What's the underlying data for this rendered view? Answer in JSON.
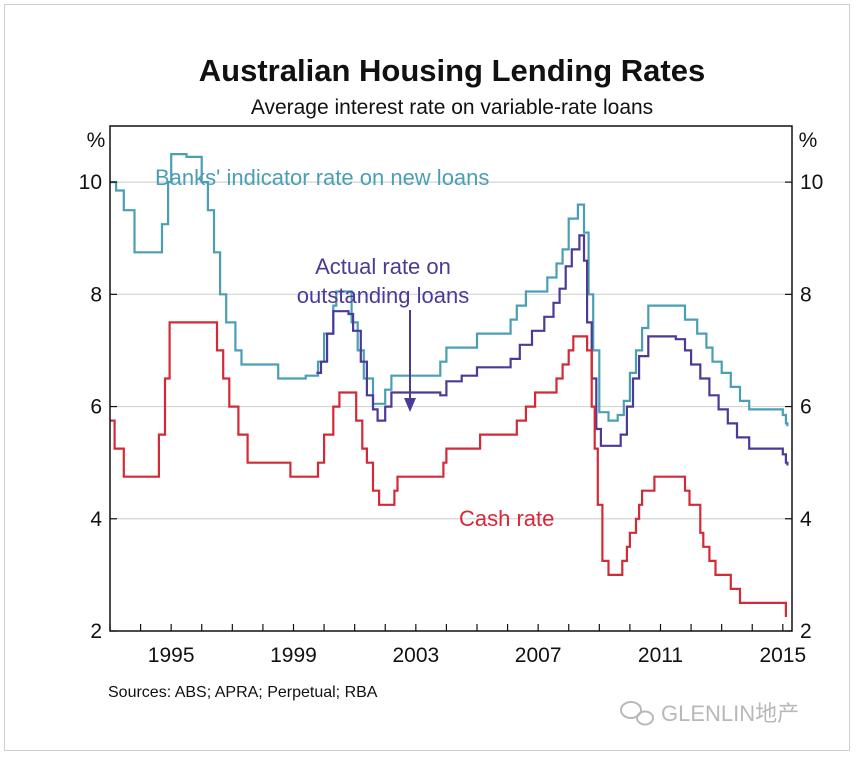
{
  "chart_data": {
    "type": "line",
    "title": "Australian Housing Lending Rates",
    "subtitle": "Average interest rate on variable-rate loans",
    "y_unit_left": "%",
    "y_unit_right": "%",
    "ylim": [
      2,
      11
    ],
    "xlim": [
      1993.0,
      2015.3
    ],
    "yticks": [
      "2",
      "4",
      "6",
      "8",
      "10"
    ],
    "xticks": [
      "1995",
      "1999",
      "2003",
      "2007",
      "2011",
      "2015"
    ],
    "grid": true,
    "source": "Sources:  ABS; APRA; Perpetual; RBA",
    "annotations": {
      "banks": "Banks' indicator rate on new loans",
      "actual_line1": "Actual rate on",
      "actual_line2": "outstanding loans",
      "cash": "Cash rate"
    },
    "watermark": "GLENLIN地产",
    "colors": {
      "banks": "#4a9fb5",
      "actual": "#4b3a96",
      "cash": "#d42a35"
    },
    "series": [
      {
        "name": "Banks' indicator rate on new loans",
        "step": true,
        "color": "#4a9fb5",
        "points": [
          [
            1993.0,
            10.0
          ],
          [
            1993.2,
            9.85
          ],
          [
            1993.45,
            9.5
          ],
          [
            1993.8,
            8.75
          ],
          [
            1994.7,
            9.25
          ],
          [
            1994.9,
            10.0
          ],
          [
            1995.0,
            10.5
          ],
          [
            1995.5,
            10.45
          ],
          [
            1996.0,
            10.0
          ],
          [
            1996.2,
            9.5
          ],
          [
            1996.4,
            8.75
          ],
          [
            1996.6,
            8.0
          ],
          [
            1996.8,
            7.5
          ],
          [
            1997.1,
            7.0
          ],
          [
            1997.3,
            6.75
          ],
          [
            1998.5,
            6.5
          ],
          [
            1999.4,
            6.55
          ],
          [
            1999.8,
            6.8
          ],
          [
            2000.0,
            7.3
          ],
          [
            2000.3,
            7.8
          ],
          [
            2000.4,
            8.05
          ],
          [
            2000.9,
            7.5
          ],
          [
            2001.1,
            7.0
          ],
          [
            2001.3,
            6.5
          ],
          [
            2001.6,
            6.05
          ],
          [
            2002.0,
            6.3
          ],
          [
            2002.2,
            6.55
          ],
          [
            2003.8,
            6.8
          ],
          [
            2004.0,
            7.05
          ],
          [
            2004.6,
            7.05
          ],
          [
            2005.0,
            7.3
          ],
          [
            2006.1,
            7.55
          ],
          [
            2006.3,
            7.8
          ],
          [
            2006.6,
            8.05
          ],
          [
            2006.9,
            8.05
          ],
          [
            2007.3,
            8.3
          ],
          [
            2007.6,
            8.55
          ],
          [
            2007.8,
            8.8
          ],
          [
            2008.0,
            9.35
          ],
          [
            2008.3,
            9.6
          ],
          [
            2008.5,
            9.1
          ],
          [
            2008.65,
            8.0
          ],
          [
            2008.8,
            7.0
          ],
          [
            2009.0,
            5.9
          ],
          [
            2009.3,
            5.75
          ],
          [
            2009.6,
            5.85
          ],
          [
            2009.8,
            6.1
          ],
          [
            2010.0,
            6.6
          ],
          [
            2010.2,
            7.0
          ],
          [
            2010.4,
            7.4
          ],
          [
            2010.6,
            7.8
          ],
          [
            2011.5,
            7.8
          ],
          [
            2011.8,
            7.55
          ],
          [
            2012.2,
            7.3
          ],
          [
            2012.5,
            7.05
          ],
          [
            2012.7,
            6.8
          ],
          [
            2013.0,
            6.6
          ],
          [
            2013.3,
            6.35
          ],
          [
            2013.6,
            6.1
          ],
          [
            2013.9,
            5.95
          ],
          [
            2015.0,
            5.85
          ],
          [
            2015.1,
            5.7
          ],
          [
            2015.15,
            5.65
          ]
        ]
      },
      {
        "name": "Actual rate on outstanding loans",
        "step": true,
        "color": "#4b3a96",
        "points": [
          [
            1999.75,
            6.6
          ],
          [
            1999.9,
            6.8
          ],
          [
            2000.1,
            7.3
          ],
          [
            2000.3,
            7.7
          ],
          [
            2000.8,
            7.65
          ],
          [
            2000.95,
            7.35
          ],
          [
            2001.2,
            6.8
          ],
          [
            2001.4,
            6.2
          ],
          [
            2001.6,
            5.95
          ],
          [
            2001.75,
            5.75
          ],
          [
            2002.0,
            6.0
          ],
          [
            2002.2,
            6.25
          ],
          [
            2003.8,
            6.2
          ],
          [
            2004.0,
            6.45
          ],
          [
            2004.5,
            6.55
          ],
          [
            2005.0,
            6.7
          ],
          [
            2006.1,
            6.85
          ],
          [
            2006.4,
            7.1
          ],
          [
            2006.8,
            7.35
          ],
          [
            2007.2,
            7.6
          ],
          [
            2007.5,
            7.85
          ],
          [
            2007.7,
            8.1
          ],
          [
            2007.9,
            8.5
          ],
          [
            2008.1,
            8.8
          ],
          [
            2008.35,
            9.05
          ],
          [
            2008.5,
            8.6
          ],
          [
            2008.6,
            7.5
          ],
          [
            2008.75,
            6.5
          ],
          [
            2008.9,
            5.6
          ],
          [
            2009.05,
            5.3
          ],
          [
            2009.5,
            5.3
          ],
          [
            2009.7,
            5.5
          ],
          [
            2009.9,
            6.0
          ],
          [
            2010.1,
            6.5
          ],
          [
            2010.3,
            6.9
          ],
          [
            2010.6,
            7.25
          ],
          [
            2011.5,
            7.2
          ],
          [
            2011.8,
            7.0
          ],
          [
            2012.0,
            6.75
          ],
          [
            2012.3,
            6.5
          ],
          [
            2012.6,
            6.2
          ],
          [
            2012.9,
            5.95
          ],
          [
            2013.2,
            5.7
          ],
          [
            2013.5,
            5.45
          ],
          [
            2013.9,
            5.25
          ],
          [
            2015.0,
            5.15
          ],
          [
            2015.1,
            5.0
          ],
          [
            2015.15,
            4.95
          ]
        ]
      },
      {
        "name": "Cash rate",
        "step": true,
        "color": "#d42a35",
        "points": [
          [
            1993.0,
            5.75
          ],
          [
            1993.15,
            5.25
          ],
          [
            1993.45,
            4.75
          ],
          [
            1994.6,
            5.5
          ],
          [
            1994.8,
            6.5
          ],
          [
            1994.95,
            7.5
          ],
          [
            1996.5,
            7.0
          ],
          [
            1996.7,
            6.5
          ],
          [
            1996.9,
            6.0
          ],
          [
            1997.2,
            5.5
          ],
          [
            1997.5,
            5.0
          ],
          [
            1998.9,
            4.75
          ],
          [
            1999.8,
            5.0
          ],
          [
            2000.0,
            5.5
          ],
          [
            2000.3,
            6.0
          ],
          [
            2000.5,
            6.25
          ],
          [
            2001.05,
            5.75
          ],
          [
            2001.25,
            5.25
          ],
          [
            2001.4,
            5.0
          ],
          [
            2001.6,
            4.5
          ],
          [
            2001.8,
            4.25
          ],
          [
            2002.3,
            4.5
          ],
          [
            2002.4,
            4.75
          ],
          [
            2003.9,
            5.0
          ],
          [
            2004.0,
            5.25
          ],
          [
            2005.1,
            5.5
          ],
          [
            2006.3,
            5.75
          ],
          [
            2006.6,
            6.0
          ],
          [
            2006.9,
            6.25
          ],
          [
            2007.6,
            6.5
          ],
          [
            2007.8,
            6.75
          ],
          [
            2008.0,
            7.0
          ],
          [
            2008.15,
            7.25
          ],
          [
            2008.6,
            7.0
          ],
          [
            2008.75,
            6.0
          ],
          [
            2008.85,
            5.25
          ],
          [
            2008.95,
            4.25
          ],
          [
            2009.1,
            3.25
          ],
          [
            2009.3,
            3.0
          ],
          [
            2009.75,
            3.25
          ],
          [
            2009.9,
            3.5
          ],
          [
            2010.0,
            3.75
          ],
          [
            2010.2,
            4.0
          ],
          [
            2010.3,
            4.25
          ],
          [
            2010.4,
            4.5
          ],
          [
            2010.8,
            4.75
          ],
          [
            2011.8,
            4.5
          ],
          [
            2011.95,
            4.25
          ],
          [
            2012.3,
            3.75
          ],
          [
            2012.4,
            3.5
          ],
          [
            2012.6,
            3.25
          ],
          [
            2012.8,
            3.0
          ],
          [
            2013.3,
            2.75
          ],
          [
            2013.6,
            2.5
          ],
          [
            2015.0,
            2.5
          ],
          [
            2015.1,
            2.25
          ]
        ]
      }
    ]
  }
}
